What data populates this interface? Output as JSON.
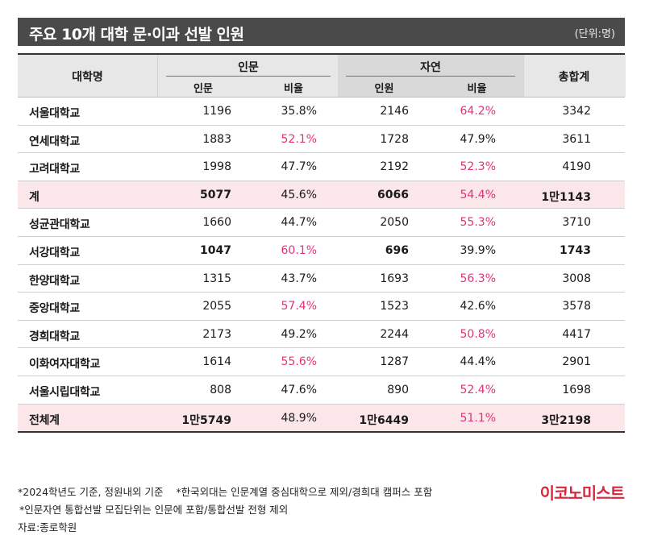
{
  "header": {
    "title": "주요 10개 대학 문·이과 선발 인원",
    "unit": "(단위:명)"
  },
  "table": {
    "col_university": "대학명",
    "group_humanities": "인문",
    "group_natural": "자연",
    "col_total": "총합계",
    "sub_hum_count": "인문",
    "sub_hum_ratio": "비율",
    "sub_nat_count": "인원",
    "sub_nat_ratio": "비율",
    "rows": [
      {
        "name": "서울대학교",
        "hum": "1196",
        "hum_pct": "35.8%",
        "nat": "2146",
        "nat_pct": "64.2%",
        "total": "3342"
      },
      {
        "name": "연세대학교",
        "hum": "1883",
        "hum_pct": "52.1%",
        "nat": "1728",
        "nat_pct": "47.9%",
        "total": "3611"
      },
      {
        "name": "고려대학교",
        "hum": "1998",
        "hum_pct": "47.7%",
        "nat": "2192",
        "nat_pct": "52.3%",
        "total": "4190"
      },
      {
        "name": "계",
        "hum": "5077",
        "hum_pct": "45.6%",
        "nat": "6066",
        "nat_pct": "54.4%",
        "total": "1만1143"
      },
      {
        "name": "성균관대학교",
        "hum": "1660",
        "hum_pct": "44.7%",
        "nat": "2050",
        "nat_pct": "55.3%",
        "total": "3710"
      },
      {
        "name": "서강대학교",
        "hum": "1047",
        "hum_pct": "60.1%",
        "nat": "696",
        "nat_pct": "39.9%",
        "total": "1743"
      },
      {
        "name": "한양대학교",
        "hum": "1315",
        "hum_pct": "43.7%",
        "nat": "1693",
        "nat_pct": "56.3%",
        "total": "3008"
      },
      {
        "name": "중앙대학교",
        "hum": "2055",
        "hum_pct": "57.4%",
        "nat": "1523",
        "nat_pct": "42.6%",
        "total": "3578"
      },
      {
        "name": "경희대학교",
        "hum": "2173",
        "hum_pct": "49.2%",
        "nat": "2244",
        "nat_pct": "50.8%",
        "total": "4417"
      },
      {
        "name": "이화여자대학교",
        "hum": "1614",
        "hum_pct": "55.6%",
        "nat": "1287",
        "nat_pct": "44.4%",
        "total": "2901"
      },
      {
        "name": "서울시립대학교",
        "hum": "808",
        "hum_pct": "47.6%",
        "nat": "890",
        "nat_pct": "52.4%",
        "total": "1698"
      },
      {
        "name": "전체계",
        "hum": "1만5749",
        "hum_pct": "48.9%",
        "nat": "1만6449",
        "nat_pct": "51.1%",
        "total": "3만2198"
      }
    ]
  },
  "notes": {
    "line1a": "*2024학년도 기준, 정원내외 기준",
    "line1b": "*한국외대는 인문계열 중심대학으로 제외/경희대 캠퍼스 포함",
    "line2": "*인문자연 통합선발 모집단위는 인문에 포함/통합선발 전형 제외",
    "source": "자료:종로학원"
  },
  "logo": "이코노미스트",
  "colors": {
    "accent": "#e4327a",
    "sum_row": "#fbe6ea",
    "title_bar": "#4a4a4a",
    "logo": "#d7263d"
  }
}
